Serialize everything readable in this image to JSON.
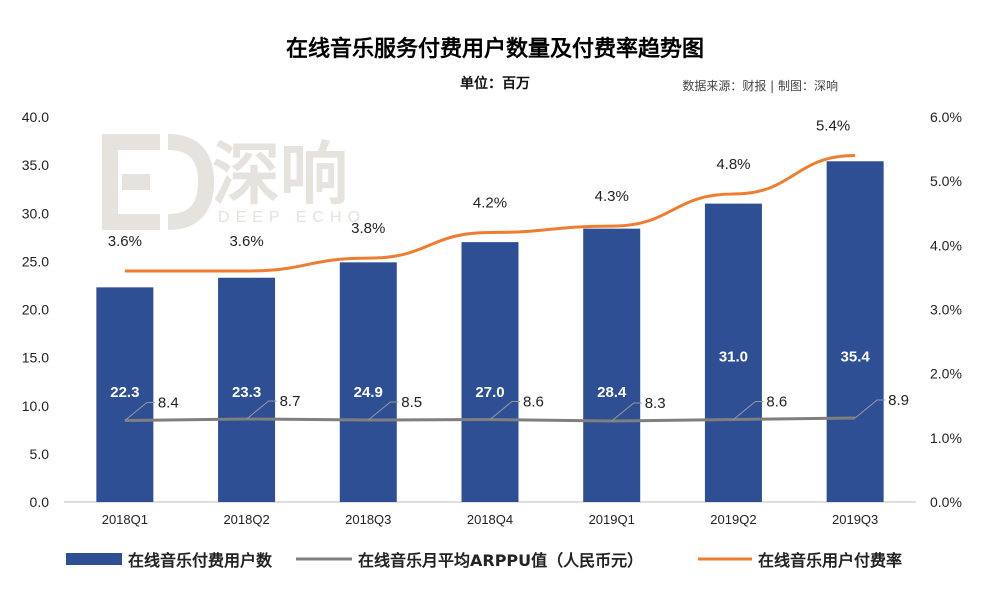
{
  "header": {
    "title": "在线音乐服务付费用户数量及付费率趋势图",
    "unit": "单位：百万",
    "source": "数据来源：财报 | 制图：深响"
  },
  "watermark": {
    "text": "深响",
    "subtext": "DEEP ECHO"
  },
  "colors": {
    "bar": "#2e4f94",
    "arppu_line": "#7f7f7f",
    "rate_line": "#ed7d31",
    "axis": "#bfbfbf",
    "watermark": "#e6e2de"
  },
  "chart_data": {
    "type": "bar",
    "categories": [
      "2018Q1",
      "2018Q2",
      "2018Q3",
      "2018Q4",
      "2019Q1",
      "2019Q2",
      "2019Q3"
    ],
    "series": [
      {
        "name": "在线音乐付费用户数",
        "type": "bar",
        "axis": "left",
        "values": [
          22.3,
          23.3,
          24.9,
          27.0,
          28.4,
          31.0,
          35.4
        ],
        "labels": [
          "22.3",
          "23.3",
          "24.9",
          "27.0",
          "28.4",
          "31.0",
          "35.4"
        ]
      },
      {
        "name": "在线音乐月平均ARPPU值（人民币元）",
        "type": "line",
        "axis": "left",
        "values": [
          8.4,
          8.7,
          8.5,
          8.6,
          8.3,
          8.6,
          8.9
        ],
        "labels": [
          "8.4",
          "8.7",
          "8.5",
          "8.6",
          "8.3",
          "8.6",
          "8.9"
        ]
      },
      {
        "name": "在线音乐用户付费率",
        "type": "line",
        "axis": "right",
        "values": [
          3.6,
          3.6,
          3.8,
          4.2,
          4.3,
          4.8,
          5.4
        ],
        "labels": [
          "3.6%",
          "3.6%",
          "3.8%",
          "4.2%",
          "4.3%",
          "4.8%",
          "5.4%"
        ]
      }
    ],
    "y_left": {
      "ylim": [
        0,
        40
      ],
      "ticks": [
        "0.0",
        "5.0",
        "10.0",
        "15.0",
        "20.0",
        "25.0",
        "30.0",
        "35.0",
        "40.0"
      ]
    },
    "y_right": {
      "ylim": [
        0,
        6
      ],
      "ticks": [
        "0.0%",
        "1.0%",
        "2.0%",
        "3.0%",
        "4.0%",
        "5.0%",
        "6.0%"
      ]
    },
    "legend_position": "bottom",
    "grid": false
  }
}
